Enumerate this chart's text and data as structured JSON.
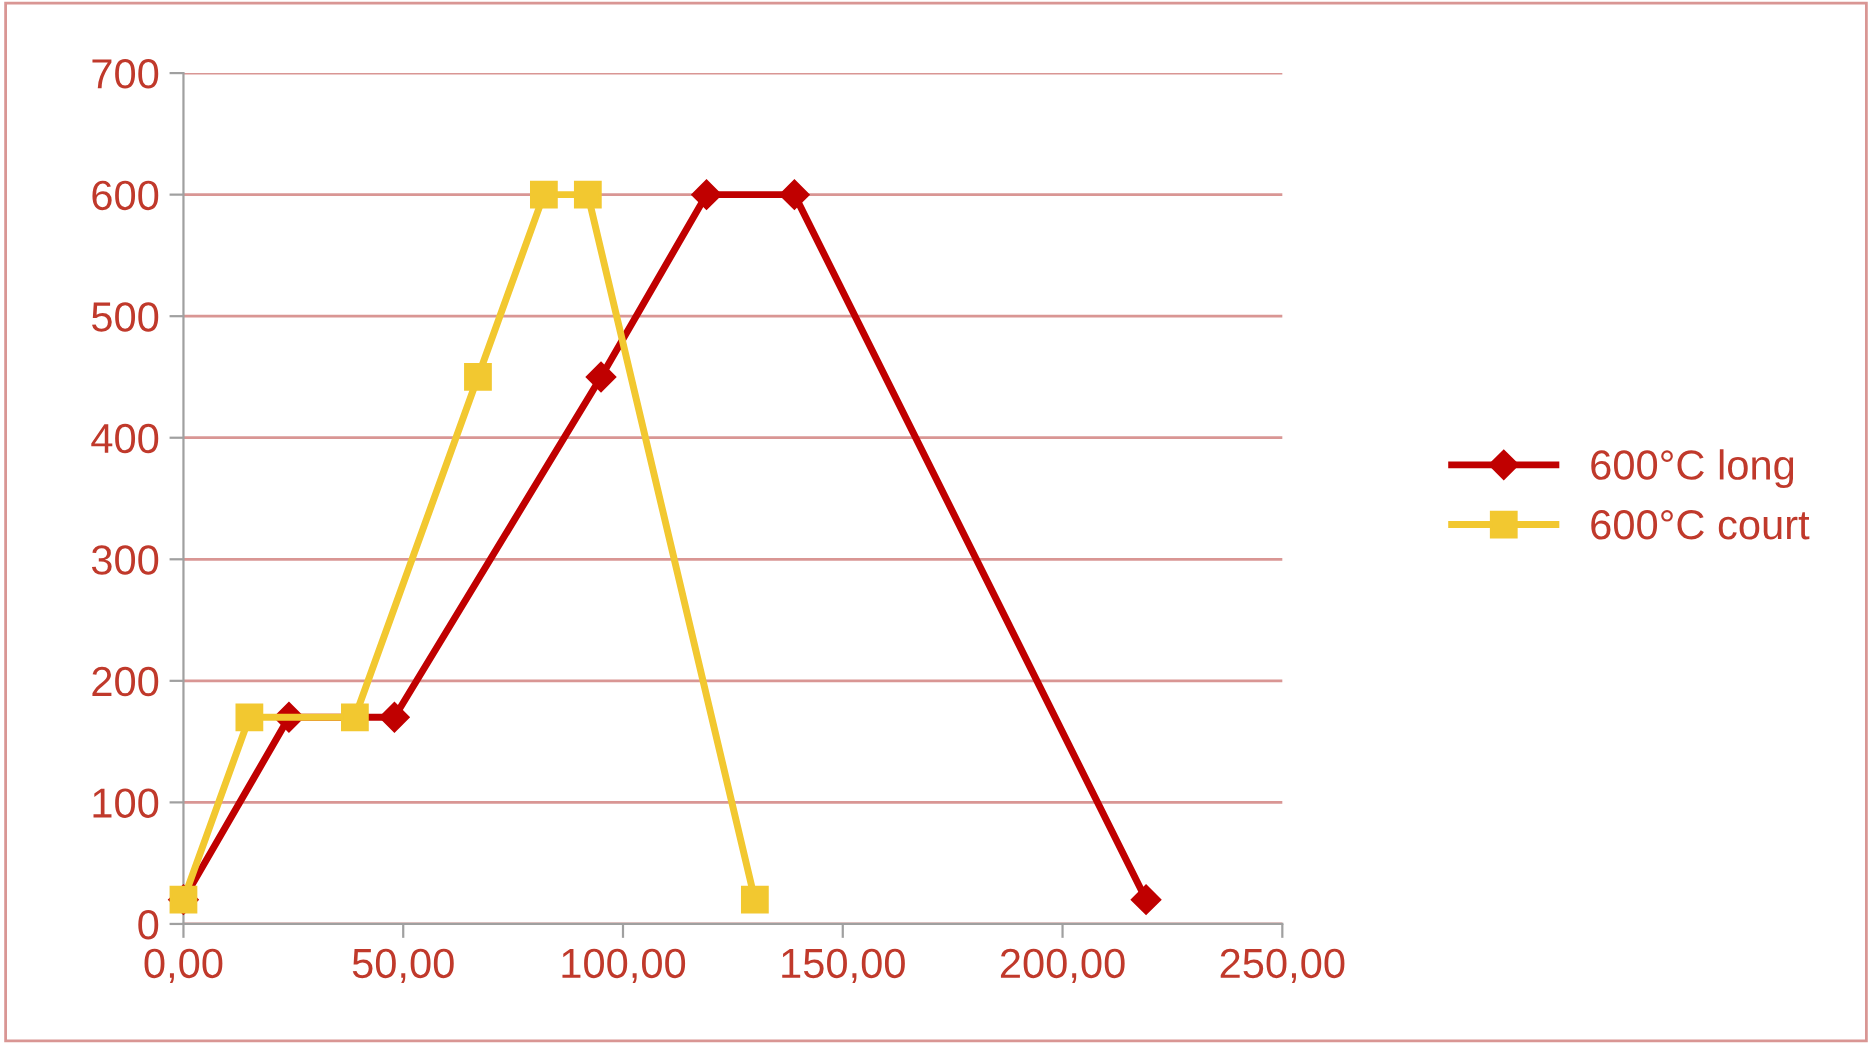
{
  "chart_data": {
    "type": "line",
    "series": [
      {
        "name": "600°C long",
        "color": "#c00000",
        "marker": "diamond",
        "x": [
          0,
          24,
          48,
          95,
          119,
          139,
          219
        ],
        "values": [
          20,
          170,
          170,
          450,
          600,
          600,
          20
        ]
      },
      {
        "name": "600°C court",
        "color": "#f2c830",
        "marker": "square",
        "x": [
          0,
          15,
          39,
          67,
          82,
          92,
          130
        ],
        "values": [
          20,
          170,
          170,
          450,
          600,
          600,
          20
        ]
      }
    ],
    "xlim": [
      0,
      250
    ],
    "xticks": [
      {
        "value": 0,
        "label": "0,00"
      },
      {
        "value": 50,
        "label": "50,00"
      },
      {
        "value": 100,
        "label": "100,00"
      },
      {
        "value": 150,
        "label": "150,00"
      },
      {
        "value": 200,
        "label": "200,00"
      },
      {
        "value": 250,
        "label": "250,00"
      }
    ],
    "ylim": [
      0,
      700
    ],
    "yticks": [
      0,
      100,
      200,
      300,
      400,
      500,
      600,
      700
    ],
    "grid": "y",
    "legend": "right"
  }
}
